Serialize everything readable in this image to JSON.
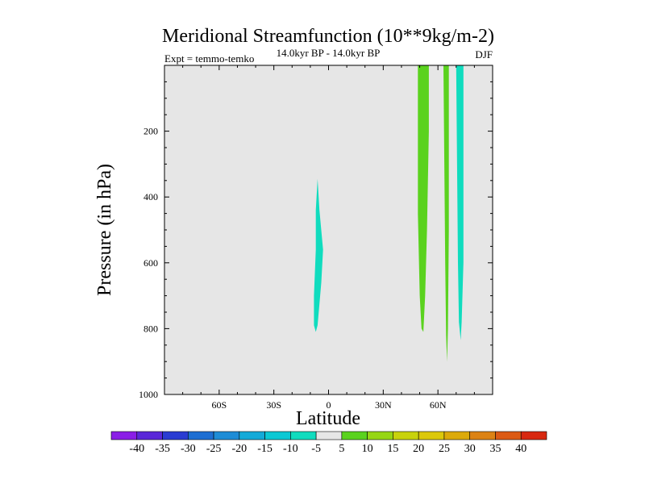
{
  "chart_data": {
    "type": "contour",
    "title": "Meridional Streamfunction (10**9kg/m-2)",
    "experiment": "Expt = temmo-temko",
    "period": "14.0kyr BP - 14.0kyr BP",
    "season": "DJF",
    "xlabel": "Latitude",
    "ylabel": "Pressure (in hPa)",
    "xlim": [
      -90,
      90
    ],
    "ylim": [
      1000,
      0
    ],
    "x_ticks": [
      {
        "value": -60,
        "label": "60S"
      },
      {
        "value": -30,
        "label": "30S"
      },
      {
        "value": 0,
        "label": "0"
      },
      {
        "value": 30,
        "label": "30N"
      },
      {
        "value": 60,
        "label": "60N"
      }
    ],
    "y_ticks": [
      {
        "value": 200,
        "label": "200"
      },
      {
        "value": 400,
        "label": "400"
      },
      {
        "value": 600,
        "label": "600"
      },
      {
        "value": 800,
        "label": "800"
      },
      {
        "value": 1000,
        "label": "1000"
      }
    ],
    "colorbar": {
      "labels": [
        "-40",
        "-35",
        "-30",
        "-25",
        "-20",
        "-15",
        "-10",
        "-5",
        "5",
        "10",
        "15",
        "20",
        "25",
        "30",
        "35",
        "40"
      ],
      "colors": [
        "#8a1ee6",
        "#5a28d8",
        "#2a3cd2",
        "#1e6ed2",
        "#1e8cd6",
        "#14aad8",
        "#0cc8d4",
        "#10dcbe",
        "#e6e6e6",
        "#5ad21e",
        "#96d614",
        "#c8d20c",
        "#dcc80a",
        "#dcaa0a",
        "#dc8214",
        "#dc5a14",
        "#d82810"
      ]
    },
    "regions": [
      {
        "name": "band-near-equator",
        "level": "-5 to -10",
        "color": "#10dcbe",
        "points": [
          [
            -6,
            345
          ],
          [
            -5,
            440
          ],
          [
            -3,
            560
          ],
          [
            -4,
            660
          ],
          [
            -6,
            790
          ],
          [
            -7,
            810
          ],
          [
            -8,
            790
          ],
          [
            -8,
            700
          ],
          [
            -7,
            560
          ],
          [
            -7,
            440
          ]
        ]
      },
      {
        "name": "band-50N",
        "level": "5 to 10",
        "color": "#5ad21e",
        "points": [
          [
            49,
            0
          ],
          [
            55,
            0
          ],
          [
            55,
            200
          ],
          [
            54,
            500
          ],
          [
            53,
            700
          ],
          [
            52,
            810
          ],
          [
            51,
            800
          ],
          [
            50,
            700
          ],
          [
            49,
            450
          ],
          [
            49,
            200
          ]
        ]
      },
      {
        "name": "band-63N",
        "level": "5 to 10",
        "color": "#5ad21e",
        "points": [
          [
            63,
            0
          ],
          [
            66,
            0
          ],
          [
            66,
            500
          ],
          [
            65.5,
            800
          ],
          [
            65,
            900
          ],
          [
            64.5,
            820
          ],
          [
            64,
            600
          ],
          [
            63.5,
            300
          ]
        ]
      },
      {
        "name": "band-71N",
        "level": "-5 to -10",
        "color": "#10dcbe",
        "points": [
          [
            70,
            0
          ],
          [
            74,
            0
          ],
          [
            74,
            600
          ],
          [
            73,
            780
          ],
          [
            72.5,
            835
          ],
          [
            71.5,
            780
          ],
          [
            71,
            600
          ],
          [
            70.5,
            300
          ]
        ]
      }
    ]
  }
}
